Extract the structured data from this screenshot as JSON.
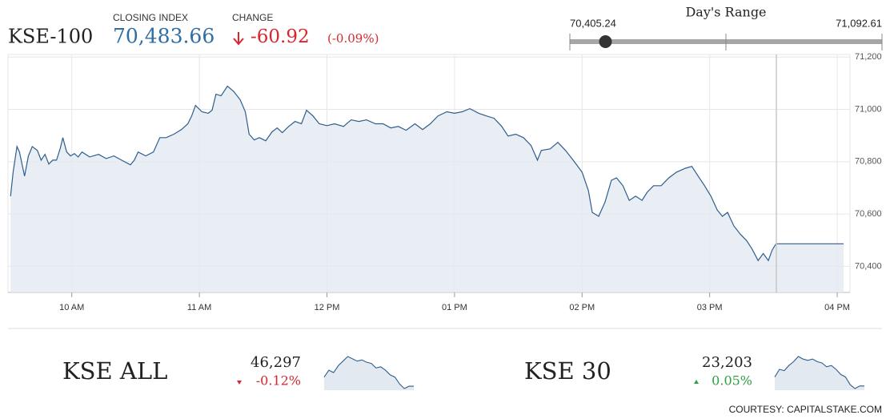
{
  "header": {
    "name": "KSE-100",
    "closing_caption": "CLOSING INDEX",
    "closing": {
      "value": 70483.66,
      "label": "70,483.66"
    },
    "change_caption": "CHANGE",
    "change": -60.92,
    "change_percent": "(-0.09%)"
  },
  "day_range": {
    "title": "Day's Range",
    "low": {
      "value": 70405.24,
      "label": "70,405.24"
    },
    "high": {
      "value": 71092.61,
      "label": "71,092.61"
    }
  },
  "indices": [
    {
      "name": "KSE ALL",
      "value": "46,297",
      "change": "-0.12%"
    },
    {
      "name": "KSE 30",
      "value": "23,203",
      "change": "0.05%"
    }
  ],
  "footer": "COURTESY: CAPITALSTAKE.COM",
  "chart_data": [
    {
      "type": "line",
      "color": "#2f5e8c",
      "fill": "#e3e9f1",
      "grid": true,
      "x": [
        9.52,
        9.54,
        9.57,
        9.59,
        9.63,
        9.66,
        9.69,
        9.73,
        9.76,
        9.79,
        9.82,
        9.85,
        9.88,
        9.91,
        9.93,
        9.96,
        9.99,
        10.02,
        10.05,
        10.08,
        10.14,
        10.21,
        10.27,
        10.33,
        10.39,
        10.46,
        10.49,
        10.52,
        10.58,
        10.64,
        10.69,
        10.74,
        10.8,
        10.86,
        10.91,
        10.94,
        10.97,
        11.02,
        11.07,
        11.1,
        11.13,
        11.17,
        11.22,
        11.27,
        11.32,
        11.36,
        11.39,
        11.43,
        11.47,
        11.52,
        11.57,
        11.61,
        11.65,
        11.7,
        11.75,
        11.8,
        11.84,
        11.89,
        11.94,
        12.0,
        12.06,
        12.13,
        12.19,
        12.25,
        12.31,
        12.38,
        12.44,
        12.5,
        12.56,
        12.62,
        12.69,
        12.75,
        12.81,
        12.87,
        12.94,
        13.0,
        13.06,
        13.12,
        13.19,
        13.25,
        13.31,
        13.37,
        13.42,
        13.48,
        13.54,
        13.6,
        13.65,
        13.68,
        13.75,
        13.81,
        13.87,
        13.93,
        14.0,
        14.05,
        14.08,
        14.13,
        14.18,
        14.23,
        14.27,
        14.32,
        14.37,
        14.42,
        14.47,
        14.51,
        14.56,
        14.62,
        14.68,
        14.74,
        14.81,
        14.86,
        14.91,
        14.96,
        15.01,
        15.06,
        15.1,
        15.14,
        15.19,
        15.24,
        15.29,
        15.33,
        15.38,
        15.42,
        15.46,
        15.49,
        15.52,
        16.05
      ],
      "values": [
        70668,
        70760,
        70858,
        70837,
        70745,
        70822,
        70858,
        70843,
        70806,
        70828,
        70791,
        70806,
        70806,
        70852,
        70892,
        70837,
        70822,
        70831,
        70818,
        70837,
        70818,
        70828,
        70812,
        70822,
        70806,
        70788,
        70806,
        70837,
        70822,
        70837,
        70892,
        70892,
        70905,
        70923,
        70945,
        70975,
        71015,
        70991,
        70985,
        70997,
        71058,
        71052,
        71089,
        71068,
        71037,
        70991,
        70905,
        70883,
        70892,
        70880,
        70914,
        70929,
        70911,
        70935,
        70954,
        70945,
        70997,
        70975,
        70945,
        70938,
        70945,
        70935,
        70960,
        70954,
        70960,
        70945,
        70945,
        70929,
        70935,
        70920,
        70945,
        70923,
        70945,
        70975,
        70991,
        70985,
        70991,
        71003,
        70985,
        70975,
        70966,
        70935,
        70898,
        70905,
        70892,
        70862,
        70806,
        70843,
        70849,
        70874,
        70843,
        70806,
        70760,
        70689,
        70606,
        70591,
        70646,
        70729,
        70738,
        70708,
        70652,
        70668,
        70652,
        70683,
        70708,
        70708,
        70738,
        70760,
        70775,
        70782,
        70745,
        70708,
        70668,
        70615,
        70591,
        70606,
        70554,
        70523,
        70498,
        70468,
        70422,
        70449,
        70422,
        70462,
        70486,
        70486
      ],
      "xlim": [
        9.5,
        16.1
      ],
      "xticks": [
        {
          "value": 10,
          "label": "10 AM"
        },
        {
          "value": 11,
          "label": "11 AM"
        },
        {
          "value": 12,
          "label": "12 PM"
        },
        {
          "value": 13,
          "label": "01 PM"
        },
        {
          "value": 14,
          "label": "02 PM"
        },
        {
          "value": 15,
          "label": "03 PM"
        },
        {
          "value": 16,
          "label": "04 PM"
        }
      ],
      "ylim": [
        70300,
        71210
      ],
      "yticks": [
        {
          "value": 70400,
          "label": "70,400"
        },
        {
          "value": 70600,
          "label": "70,600"
        },
        {
          "value": 70800,
          "label": "70,800"
        },
        {
          "value": 71000,
          "label": "71,000"
        },
        {
          "value": 71200,
          "label": "71,200"
        }
      ]
    },
    {
      "type": "sparkline",
      "color": "#2f5e8c",
      "fill": "#e3e9f1",
      "values": [
        46330,
        46360,
        46350,
        46380,
        46400,
        46420,
        46410,
        46400,
        46405,
        46395,
        46390,
        46370,
        46375,
        46360,
        46340,
        46330,
        46300,
        46280,
        46290,
        46290
      ]
    },
    {
      "type": "sparkline",
      "color": "#2f5e8c",
      "fill": "#e3e9f1",
      "values": [
        23230,
        23260,
        23255,
        23275,
        23290,
        23310,
        23300,
        23295,
        23300,
        23290,
        23285,
        23270,
        23275,
        23260,
        23240,
        23230,
        23200,
        23185,
        23195,
        23195
      ]
    }
  ]
}
